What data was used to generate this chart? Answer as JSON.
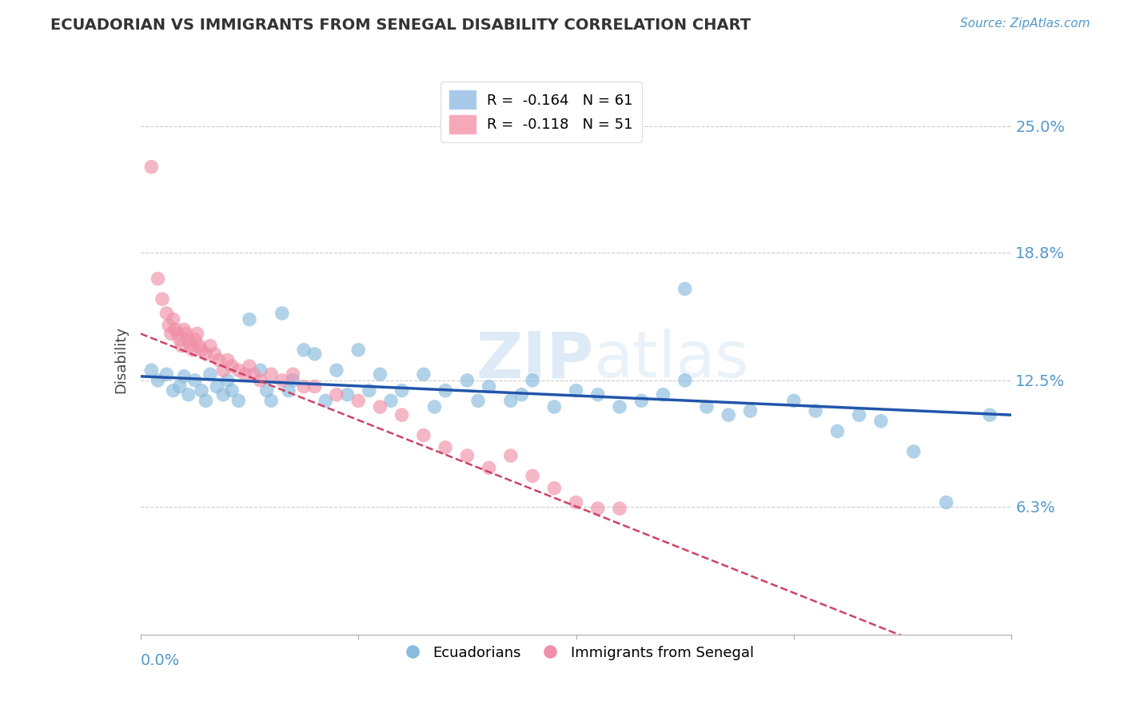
{
  "title": "ECUADORIAN VS IMMIGRANTS FROM SENEGAL DISABILITY CORRELATION CHART",
  "source": "Source: ZipAtlas.com",
  "ylabel": "Disability",
  "ytick_labels": [
    "6.3%",
    "12.5%",
    "18.8%",
    "25.0%"
  ],
  "ytick_values": [
    0.063,
    0.125,
    0.188,
    0.25
  ],
  "xlim": [
    0.0,
    0.4
  ],
  "ylim": [
    0.0,
    0.27
  ],
  "legend_entries": [
    {
      "label": "R =  -0.164   N = 61",
      "color": "#a8c8e8"
    },
    {
      "label": "R =  -0.118   N = 51",
      "color": "#f4a8b8"
    }
  ],
  "legend_labels": [
    "Ecuadorians",
    "Immigrants from Senegal"
  ],
  "blue_color": "#88bbdd",
  "pink_color": "#f090a8",
  "blue_line_color": "#2255aa",
  "pink_line_color": "#cc4466",
  "watermark": "ZIPatlas",
  "background_color": "#ffffff",
  "grid_color": "#cccccc",
  "title_color": "#333333",
  "tick_color": "#5599cc",
  "blue_x": [
    0.005,
    0.008,
    0.012,
    0.015,
    0.018,
    0.02,
    0.022,
    0.025,
    0.028,
    0.03,
    0.032,
    0.035,
    0.038,
    0.04,
    0.042,
    0.045,
    0.05,
    0.055,
    0.058,
    0.06,
    0.065,
    0.068,
    0.07,
    0.075,
    0.08,
    0.085,
    0.09,
    0.095,
    0.1,
    0.105,
    0.11,
    0.115,
    0.12,
    0.13,
    0.135,
    0.14,
    0.15,
    0.155,
    0.16,
    0.17,
    0.175,
    0.18,
    0.19,
    0.2,
    0.21,
    0.22,
    0.23,
    0.24,
    0.25,
    0.26,
    0.27,
    0.28,
    0.3,
    0.31,
    0.32,
    0.33,
    0.34,
    0.355,
    0.37,
    0.39,
    0.25
  ],
  "blue_y": [
    0.13,
    0.125,
    0.128,
    0.12,
    0.122,
    0.127,
    0.118,
    0.125,
    0.12,
    0.115,
    0.128,
    0.122,
    0.118,
    0.125,
    0.12,
    0.115,
    0.155,
    0.13,
    0.12,
    0.115,
    0.158,
    0.12,
    0.125,
    0.14,
    0.138,
    0.115,
    0.13,
    0.118,
    0.14,
    0.12,
    0.128,
    0.115,
    0.12,
    0.128,
    0.112,
    0.12,
    0.125,
    0.115,
    0.122,
    0.115,
    0.118,
    0.125,
    0.112,
    0.12,
    0.118,
    0.112,
    0.115,
    0.118,
    0.125,
    0.112,
    0.108,
    0.11,
    0.115,
    0.11,
    0.1,
    0.108,
    0.105,
    0.09,
    0.065,
    0.108,
    0.17
  ],
  "pink_x": [
    0.005,
    0.008,
    0.01,
    0.012,
    0.013,
    0.014,
    0.015,
    0.016,
    0.017,
    0.018,
    0.019,
    0.02,
    0.021,
    0.022,
    0.023,
    0.024,
    0.025,
    0.026,
    0.027,
    0.028,
    0.03,
    0.032,
    0.034,
    0.036,
    0.038,
    0.04,
    0.042,
    0.045,
    0.048,
    0.05,
    0.052,
    0.055,
    0.06,
    0.065,
    0.07,
    0.075,
    0.08,
    0.09,
    0.1,
    0.11,
    0.12,
    0.13,
    0.14,
    0.15,
    0.16,
    0.17,
    0.18,
    0.19,
    0.2,
    0.21,
    0.22
  ],
  "pink_y": [
    0.23,
    0.175,
    0.165,
    0.158,
    0.152,
    0.148,
    0.155,
    0.15,
    0.148,
    0.145,
    0.142,
    0.15,
    0.148,
    0.145,
    0.142,
    0.14,
    0.145,
    0.148,
    0.142,
    0.14,
    0.138,
    0.142,
    0.138,
    0.135,
    0.13,
    0.135,
    0.132,
    0.13,
    0.128,
    0.132,
    0.128,
    0.125,
    0.128,
    0.125,
    0.128,
    0.122,
    0.122,
    0.118,
    0.115,
    0.112,
    0.108,
    0.098,
    0.092,
    0.088,
    0.082,
    0.088,
    0.078,
    0.072,
    0.065,
    0.062,
    0.062
  ]
}
